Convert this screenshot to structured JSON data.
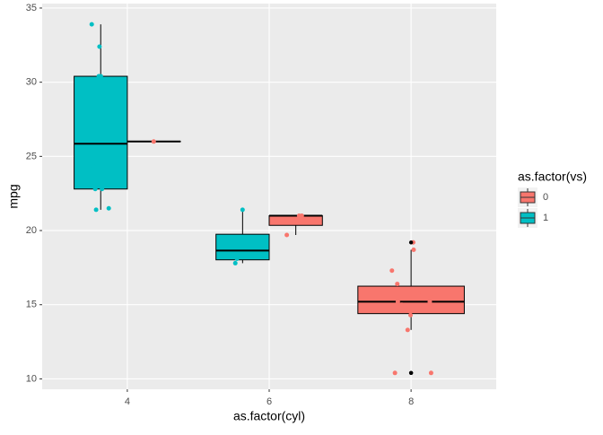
{
  "chart_data": {
    "type": "box",
    "x_label": "as.factor(cyl)",
    "y_label": "mpg",
    "legend_title": "as.factor(vs)",
    "categories": [
      "4",
      "6",
      "8"
    ],
    "ylim": [
      9.3,
      35.3
    ],
    "yticks": [
      10,
      15,
      20,
      25,
      30,
      35
    ],
    "grid": true,
    "series": [
      {
        "name": "0",
        "color": "#F8766D",
        "boxes": [
          {
            "min": 26,
            "q1": 26,
            "median": 26,
            "q3": 26,
            "max": 26
          },
          {
            "min": 19.7,
            "q1": 20.35,
            "median": 21,
            "q3": 21,
            "max": 21
          },
          {
            "min": 13.3,
            "q1": 14.4,
            "median": 15.2,
            "q3": 16.25,
            "max": 18.7
          }
        ],
        "outliers": [
          [],
          [],
          [
            10.4,
            10.4,
            19.2
          ]
        ],
        "points": [
          [
            26
          ],
          [
            21,
            21,
            19.7
          ],
          [
            18.7,
            14.3,
            16.4,
            17.3,
            15.2,
            10.4,
            10.4,
            14.7,
            15.5,
            15.2,
            13.3,
            19.2,
            15.8,
            15.0
          ]
        ]
      },
      {
        "name": "1",
        "color": "#00BFC4",
        "boxes": [
          {
            "min": 21.4,
            "q1": 22.8,
            "median": 25.85,
            "q3": 30.4,
            "max": 33.9
          },
          {
            "min": 17.8,
            "q1": 18.025,
            "median": 18.65,
            "q3": 19.75,
            "max": 21.4
          },
          null
        ],
        "outliers": [
          [],
          [],
          []
        ],
        "points": [
          [
            22.8,
            24.4,
            22.8,
            32.4,
            30.4,
            33.9,
            21.5,
            27.3,
            30.4,
            21.4
          ],
          [
            21.4,
            18.1,
            19.2,
            17.8
          ],
          []
        ]
      }
    ]
  }
}
